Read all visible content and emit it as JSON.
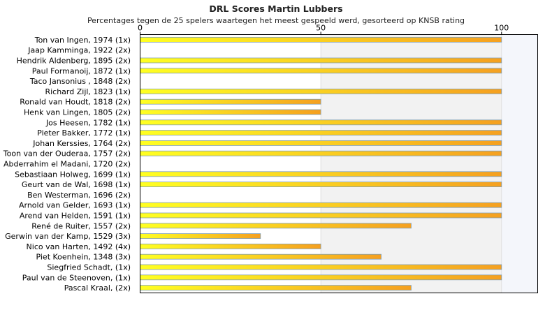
{
  "chart_data": {
    "type": "bar",
    "orientation": "horizontal",
    "title": "DRL Scores Martin Lubbers",
    "subtitle": "Percentages tegen de 25 spelers waartegen het meest gespeeld werd, gesorteerd op KNSB rating",
    "xlim": [
      0,
      110
    ],
    "xticks": [
      0,
      50,
      100
    ],
    "grid": false,
    "categories": [
      "Ton van Ingen, 1974 (1x)",
      "Jaap Kamminga, 1922 (2x)",
      "Hendrik Aldenberg, 1895 (2x)",
      "Paul Formanoij, 1872 (1x)",
      "Taco Jansonius , 1848 (2x)",
      "Richard Zijl, 1823 (1x)",
      "Ronald van Houdt, 1818 (2x)",
      "Henk van Lingen, 1805 (2x)",
      "Jos Heesen, 1782 (1x)",
      "Pieter Bakker, 1772 (1x)",
      "Johan Kerssies, 1764 (2x)",
      "Toon van der Ouderaa, 1757 (2x)",
      "Abderrahim el Madani, 1720 (2x)",
      "Sebastiaan Holweg, 1699 (1x)",
      "Geurt van de Wal, 1698 (1x)",
      "Ben Westerman, 1696 (2x)",
      "Arnold van Gelder, 1693 (1x)",
      "Arend van Helden, 1591 (1x)",
      "René de Ruiter, 1557 (2x)",
      "Gerwin van der Kamp, 1529 (3x)",
      "Nico van Harten, 1492 (4x)",
      "Piet Koenhein, 1348 (3x)",
      "Siegfried Schadt,  (1x)",
      "Paul van de Steenoven,  (1x)",
      "Pascal Kraal,  (2x)"
    ],
    "values": [
      100,
      0,
      100,
      100,
      0,
      100,
      50,
      50,
      100,
      100,
      100,
      100,
      0,
      100,
      100,
      0,
      100,
      100,
      75,
      33.3,
      50,
      66.7,
      100,
      100,
      75
    ],
    "colors": {
      "bar_start": "#ffff22",
      "bar_end": "#f5a020",
      "bar_edge": "#7f9fb8",
      "band_shade": "#f2f2f2",
      "band_shade_right": "#f4f6fb",
      "axis": "#000000",
      "text": "#000000"
    }
  }
}
